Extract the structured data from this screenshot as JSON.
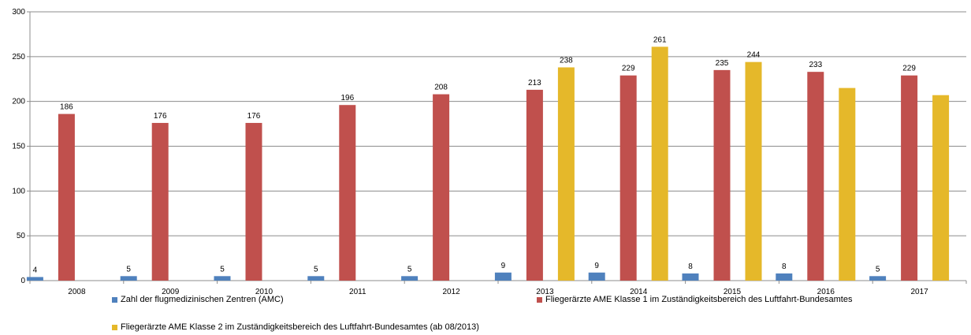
{
  "chart_data": {
    "type": "bar",
    "categories": [
      "2008",
      "2009",
      "2010",
      "2011",
      "2012",
      "2013",
      "2014",
      "2015",
      "2016",
      "2017"
    ],
    "ylim": [
      0,
      300
    ],
    "yticks": [
      0,
      50,
      100,
      150,
      200,
      250,
      300
    ],
    "grid": true,
    "legend_position": "bottom",
    "series": [
      {
        "name": "Zahl der flugmedizinischen Zentren (AMC)",
        "color": "#4f81bd",
        "values": [
          4,
          5,
          5,
          5,
          5,
          9,
          9,
          8,
          8,
          5
        ],
        "labels": [
          "4",
          "5",
          "5",
          "5",
          "5",
          "9",
          "9",
          "8",
          "8",
          "5"
        ]
      },
      {
        "name": "Fliegerärzte AME Klasse 1 im Zuständigkeitsbereich des Luftfahrt-Bundesamtes",
        "color": "#c0504d",
        "values": [
          186,
          176,
          176,
          196,
          208,
          213,
          229,
          235,
          233,
          229
        ],
        "labels": [
          "186",
          "176",
          "176",
          "196",
          "208",
          "213",
          "229",
          "235",
          "233",
          "229"
        ]
      },
      {
        "name": "Fliegerärzte AME Klasse 2 im Zuständigkeitsbereich des Luftfahrt-Bundesamtes (ab 08/2013)",
        "color": "#e5b82a",
        "values": [
          null,
          null,
          null,
          null,
          null,
          238,
          261,
          244,
          215,
          207
        ],
        "labels": [
          "",
          "",
          "",
          "",
          "",
          "238",
          "261",
          "244",
          "",
          ""
        ]
      }
    ]
  }
}
